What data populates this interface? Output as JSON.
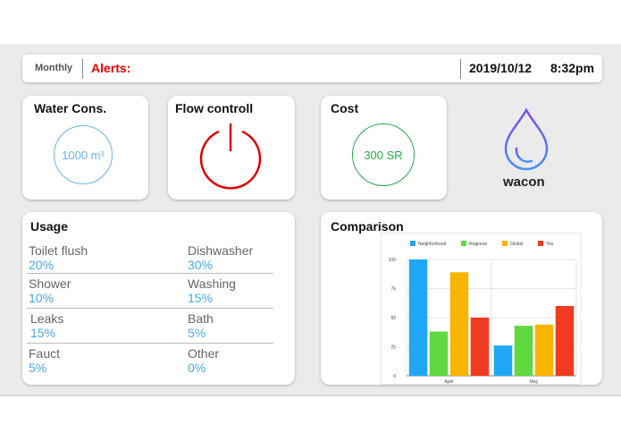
{
  "topbar": {
    "period": "Monthly",
    "alerts_label": "Alerts:",
    "date": "2019/10/12",
    "time": "8:32pm"
  },
  "water": {
    "title": "Water Cons.",
    "value": "1000 m³"
  },
  "flow": {
    "title": "Flow controll"
  },
  "cost": {
    "title": "Cost",
    "value": "300 SR"
  },
  "brand": {
    "name": "wacon",
    "icon": "water-drop-icon"
  },
  "usage": {
    "title": "Usage",
    "items": [
      {
        "name": "Toilet flush",
        "value": "20%"
      },
      {
        "name": "Dishwasher",
        "value": "30%"
      },
      {
        "name": "Shower",
        "value": "10%"
      },
      {
        "name": "Washing",
        "value": "15%"
      },
      {
        "name": "Leaks",
        "value": "15%"
      },
      {
        "name": "Bath",
        "value": "5%"
      },
      {
        "name": "Fauct",
        "value": "5%"
      },
      {
        "name": "Other",
        "value": "0%"
      }
    ]
  },
  "comparison": {
    "title": "Comparison"
  },
  "colors": {
    "alert": "#ee0000",
    "water": "#6ab4e8",
    "flow": "#e00000",
    "cost": "#2aa84a",
    "value": "#4aa8e8"
  },
  "chart_data": {
    "type": "bar",
    "categories": [
      "April",
      "May"
    ],
    "series": [
      {
        "name": "Neighborhood",
        "color": "#1fa7f5",
        "values": [
          100,
          26
        ]
      },
      {
        "name": "Regional",
        "color": "#5fd93f",
        "values": [
          38,
          43
        ]
      },
      {
        "name": "Global",
        "color": "#f7b500",
        "values": [
          89,
          44
        ]
      },
      {
        "name": "You",
        "color": "#f03b20",
        "values": [
          50,
          60
        ]
      }
    ],
    "yticks": [
      "0",
      "25",
      "50",
      "75",
      "100"
    ],
    "ylim": [
      0,
      100
    ],
    "grid": true,
    "legend": "top"
  }
}
